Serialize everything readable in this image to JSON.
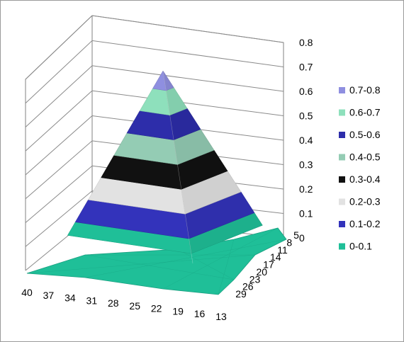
{
  "chart_data": {
    "type": "surface",
    "z_axis": {
      "min": 0,
      "max": 0.8,
      "step": 0.1,
      "tick_labels": [
        "0",
        "0.1",
        "0.2",
        "0.3",
        "0.4",
        "0.5",
        "0.6",
        "0.7",
        "0.8"
      ]
    },
    "x_axis": {
      "tick_labels": [
        "40",
        "37",
        "34",
        "31",
        "28",
        "25",
        "22",
        "19",
        "16",
        "13"
      ]
    },
    "y_axis": {
      "tick_labels": [
        "5",
        "8",
        "11",
        "14",
        "17",
        "20",
        "23",
        "26",
        "29"
      ]
    },
    "peak_value": 0.78,
    "bands": [
      {
        "label": "0-0.1",
        "range": [
          0,
          0.1
        ],
        "color": "#1FBF98"
      },
      {
        "label": "0.1-0.2",
        "range": [
          0.1,
          0.2
        ],
        "color": "#3333BB"
      },
      {
        "label": "0.2-0.3",
        "range": [
          0.2,
          0.3
        ],
        "color": "#E2E2E2"
      },
      {
        "label": "0.3-0.4",
        "range": [
          0.3,
          0.4
        ],
        "color": "#111111"
      },
      {
        "label": "0.4-0.5",
        "range": [
          0.4,
          0.5
        ],
        "color": "#94CCB4"
      },
      {
        "label": "0.5-0.6",
        "range": [
          0.5,
          0.6
        ],
        "color": "#2D2DAA"
      },
      {
        "label": "0.6-0.7",
        "range": [
          0.6,
          0.7
        ],
        "color": "#8EE0BC"
      },
      {
        "label": "0.7-0.8",
        "range": [
          0.7,
          0.8
        ],
        "color": "#8F8FE0"
      }
    ],
    "legend": {
      "placement": "right",
      "entries": [
        "0.7-0.8",
        "0.6-0.7",
        "0.5-0.6",
        "0.4-0.5",
        "0.3-0.4",
        "0.2-0.3",
        "0.1-0.2",
        "0-0.1"
      ]
    },
    "grid": true
  }
}
